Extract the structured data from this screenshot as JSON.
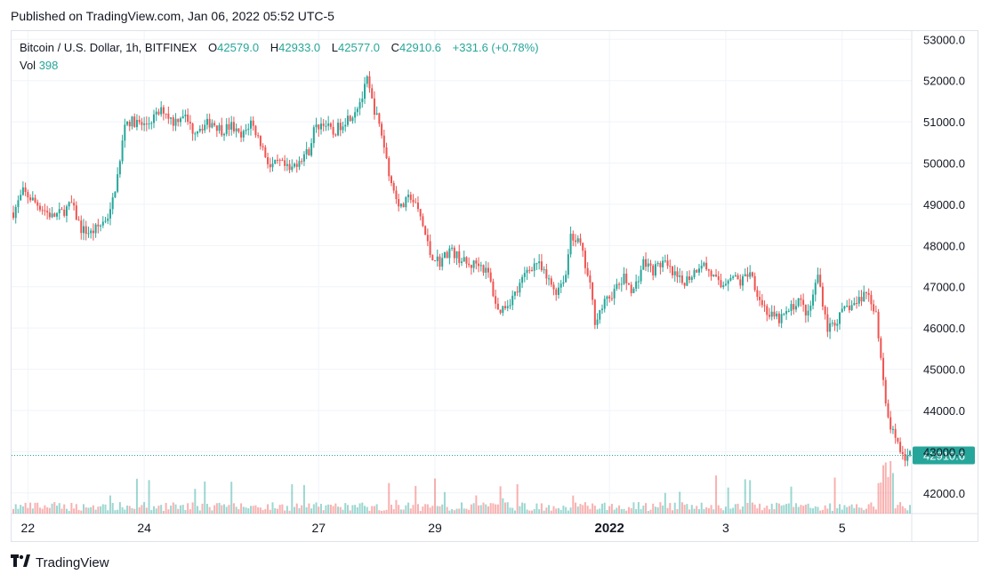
{
  "header": {
    "published": "Published on TradingView.com, Jan 06, 2022 05:52 UTC-5"
  },
  "legend": {
    "symbol": "Bitcoin / U.S. Dollar, 1h, BITFINEX",
    "open_label": "O",
    "open": "42579.0",
    "high_label": "H",
    "high": "42933.0",
    "low_label": "L",
    "low": "42577.0",
    "close_label": "C",
    "close": "42910.6",
    "change": "+331.6 (+0.78%)",
    "vol_label": "Vol",
    "vol": "398"
  },
  "footer": {
    "brand": "TradingView",
    "logo_icon": "tradingview-logo-icon"
  },
  "colors": {
    "up": "#26a69a",
    "down": "#ef5350",
    "grid": "#f0f3fa",
    "text": "#131722"
  },
  "chart_data": {
    "type": "candlestick",
    "interval": "1h",
    "y_ticks": [
      42000,
      43000,
      44000,
      45000,
      46000,
      47000,
      48000,
      49000,
      50000,
      51000,
      52000,
      53000
    ],
    "y_tick_labels": [
      "42000.0",
      "43000.0",
      "44000.0",
      "45000.0",
      "46000.0",
      "47000.0",
      "48000.0",
      "49000.0",
      "50000.0",
      "51000.0",
      "52000.0",
      "53000.0"
    ],
    "ylim": [
      41500,
      53200
    ],
    "x_tick_labels": [
      "22",
      "24",
      "27",
      "29",
      "2022",
      "3",
      "5"
    ],
    "x_tick_index": [
      6,
      54,
      126,
      174,
      246,
      294,
      342
    ],
    "last_price": 42910.6,
    "last_price_label": "42910.6",
    "grid": true,
    "close_path": [
      [
        0,
        48800
      ],
      [
        4,
        49300
      ],
      [
        8,
        49100
      ],
      [
        12,
        48900
      ],
      [
        16,
        48700
      ],
      [
        20,
        48800
      ],
      [
        24,
        49000
      ],
      [
        28,
        48400
      ],
      [
        32,
        48300
      ],
      [
        36,
        48500
      ],
      [
        40,
        48800
      ],
      [
        44,
        50000
      ],
      [
        46,
        51000
      ],
      [
        50,
        51000
      ],
      [
        54,
        50900
      ],
      [
        58,
        51100
      ],
      [
        62,
        51300
      ],
      [
        66,
        51000
      ],
      [
        70,
        51200
      ],
      [
        74,
        50800
      ],
      [
        78,
        50900
      ],
      [
        82,
        51000
      ],
      [
        86,
        50800
      ],
      [
        90,
        50900
      ],
      [
        94,
        50600
      ],
      [
        98,
        51000
      ],
      [
        102,
        50500
      ],
      [
        106,
        49900
      ],
      [
        110,
        50000
      ],
      [
        114,
        49800
      ],
      [
        118,
        50100
      ],
      [
        122,
        50300
      ],
      [
        124,
        50800
      ],
      [
        128,
        51000
      ],
      [
        132,
        50700
      ],
      [
        136,
        51000
      ],
      [
        140,
        51200
      ],
      [
        144,
        51600
      ],
      [
        146,
        52000
      ],
      [
        148,
        51500
      ],
      [
        152,
        50700
      ],
      [
        156,
        49500
      ],
      [
        160,
        48900
      ],
      [
        164,
        49200
      ],
      [
        168,
        48700
      ],
      [
        172,
        47800
      ],
      [
        176,
        47600
      ],
      [
        180,
        47900
      ],
      [
        184,
        47700
      ],
      [
        188,
        47500
      ],
      [
        192,
        47600
      ],
      [
        196,
        47300
      ],
      [
        200,
        46400
      ],
      [
        204,
        46600
      ],
      [
        208,
        46900
      ],
      [
        212,
        47400
      ],
      [
        216,
        47600
      ],
      [
        220,
        47200
      ],
      [
        224,
        46900
      ],
      [
        228,
        47300
      ],
      [
        230,
        48300
      ],
      [
        234,
        48000
      ],
      [
        238,
        47000
      ],
      [
        240,
        46200
      ],
      [
        244,
        46600
      ],
      [
        248,
        46900
      ],
      [
        252,
        47200
      ],
      [
        256,
        46900
      ],
      [
        260,
        47600
      ],
      [
        264,
        47400
      ],
      [
        268,
        47600
      ],
      [
        272,
        47300
      ],
      [
        276,
        47100
      ],
      [
        280,
        47300
      ],
      [
        284,
        47600
      ],
      [
        288,
        47300
      ],
      [
        292,
        47000
      ],
      [
        296,
        47300
      ],
      [
        300,
        47100
      ],
      [
        304,
        47400
      ],
      [
        308,
        46700
      ],
      [
        312,
        46300
      ],
      [
        316,
        46200
      ],
      [
        320,
        46400
      ],
      [
        324,
        46700
      ],
      [
        328,
        46300
      ],
      [
        332,
        47300
      ],
      [
        336,
        46000
      ],
      [
        340,
        46200
      ],
      [
        344,
        46500
      ],
      [
        348,
        46600
      ],
      [
        352,
        46900
      ],
      [
        356,
        46400
      ],
      [
        358,
        45200
      ],
      [
        360,
        44100
      ],
      [
        362,
        43600
      ],
      [
        364,
        43300
      ],
      [
        366,
        43100
      ],
      [
        368,
        42800
      ],
      [
        370,
        42910
      ]
    ]
  }
}
